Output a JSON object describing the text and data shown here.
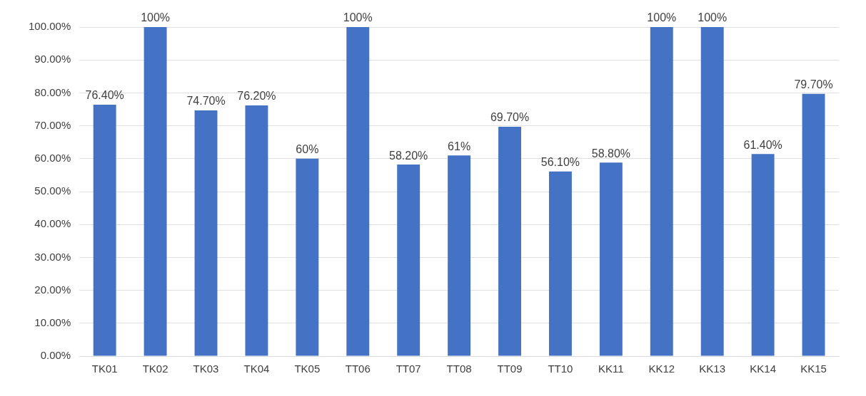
{
  "chart_data": {
    "type": "bar",
    "categories": [
      "TK01",
      "TK02",
      "TK03",
      "TK04",
      "TK05",
      "TT06",
      "TT07",
      "TT08",
      "TT09",
      "TT10",
      "KK11",
      "KK12",
      "KK13",
      "KK14",
      "KK15"
    ],
    "values": [
      76.4,
      100,
      74.7,
      76.2,
      60,
      100,
      58.2,
      61,
      69.7,
      56.1,
      58.8,
      100,
      100,
      61.4,
      79.7
    ],
    "value_labels": [
      "76.40%",
      "100%",
      "74.70%",
      "76.20%",
      "60%",
      "100%",
      "58.20%",
      "61%",
      "69.70%",
      "56.10%",
      "58.80%",
      "100%",
      "100%",
      "61.40%",
      "79.70%"
    ],
    "color": "#4472c4",
    "ylim": [
      0,
      100
    ],
    "yticks": [
      {
        "value": 0,
        "label": "0.00%"
      },
      {
        "value": 10,
        "label": "10.00%"
      },
      {
        "value": 20,
        "label": "20.00%"
      },
      {
        "value": 30,
        "label": "30.00%"
      },
      {
        "value": 40,
        "label": "40.00%"
      },
      {
        "value": 50,
        "label": "50.00%"
      },
      {
        "value": 60,
        "label": "60.00%"
      },
      {
        "value": 70,
        "label": "70.00%"
      },
      {
        "value": 80,
        "label": "80.00%"
      },
      {
        "value": 90,
        "label": "90.00%"
      },
      {
        "value": 100,
        "label": "100.00%"
      }
    ],
    "grid": "y",
    "legend": false
  }
}
